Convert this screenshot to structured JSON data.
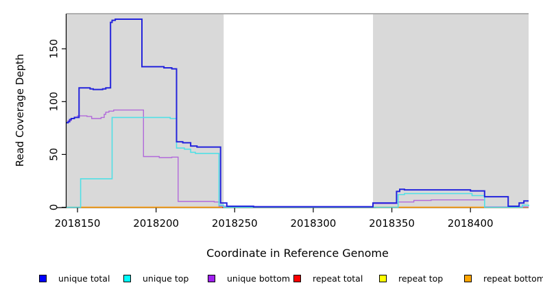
{
  "figure_type": "genome-coverage-step-plot",
  "chart_data": {
    "type": "line",
    "subtype": "step",
    "title": "",
    "xlabel": "Coordinate in Reference Genome",
    "ylabel": "Read Coverage Depth",
    "xlim": [
      2018143,
      2018437
    ],
    "ylim": [
      0,
      183
    ],
    "x_ticks": [
      2018150,
      2018200,
      2018250,
      2018300,
      2018350,
      2018400
    ],
    "y_ticks": [
      0,
      50,
      100,
      150
    ],
    "grid": "off",
    "legend_position": "bottom",
    "background": {
      "plot_fill": "#d9d9d9",
      "gap_fill": "#ffffff",
      "gap_x_range": [
        2018243,
        2018338
      ],
      "top_border_color": "#9a9a9a"
    },
    "series": [
      {
        "name": "repeat top",
        "color": "#f0f000",
        "line_width": 1.2,
        "segments": [
          [
            [
              2018143,
              0
            ],
            [
              2018437,
              0
            ]
          ]
        ]
      },
      {
        "name": "repeat total",
        "color": "#dd1c1c",
        "line_width": 1.2,
        "segments": [
          [
            [
              2018143,
              0
            ],
            [
              2018437,
              0
            ]
          ]
        ]
      },
      {
        "name": "repeat bottom",
        "color": "#ff9d00",
        "line_width": 1.6,
        "segments": [
          [
            [
              2018152,
              0
            ],
            [
              2018242,
              0
            ]
          ],
          [
            [
              2018340,
              0
            ],
            [
              2018437,
              0
            ]
          ]
        ]
      },
      {
        "name": "unique bottom",
        "color": "#b168da",
        "line_width": 1.4,
        "segments": [
          [
            [
              2018143,
              80
            ],
            [
              2018144,
              82
            ],
            [
              2018146,
              84
            ],
            [
              2018148,
              85
            ],
            [
              2018150,
              86.5
            ],
            [
              2018156,
              86
            ],
            [
              2018159,
              84
            ],
            [
              2018165,
              85
            ],
            [
              2018167,
              88
            ],
            [
              2018168,
              90
            ],
            [
              2018170,
              91
            ],
            [
              2018173,
              92
            ],
            [
              2018192,
              48
            ],
            [
              2018202,
              47
            ],
            [
              2018210,
              47.5
            ],
            [
              2018214,
              5.5
            ],
            [
              2018237,
              5
            ],
            [
              2018240,
              1
            ],
            [
              2018262,
              0.7
            ],
            [
              2018338,
              3.5
            ],
            [
              2018354,
              5
            ],
            [
              2018364,
              6.5
            ],
            [
              2018375,
              7
            ],
            [
              2018409,
              0.4
            ],
            [
              2018437,
              0.4
            ]
          ]
        ]
      },
      {
        "name": "unique top",
        "color": "#50e0e6",
        "line_width": 1.6,
        "segments": [
          [
            [
              2018143,
              0
            ],
            [
              2018152,
              27
            ],
            [
              2018172,
              85
            ],
            [
              2018209,
              84
            ],
            [
              2018213,
              56
            ],
            [
              2018218,
              55
            ],
            [
              2018222,
              52
            ],
            [
              2018225,
              51
            ],
            [
              2018240,
              2
            ],
            [
              2018243,
              0
            ],
            [
              2018354,
              12
            ],
            [
              2018358,
              13
            ],
            [
              2018401,
              11
            ],
            [
              2018409,
              0
            ],
            [
              2018433,
              2
            ],
            [
              2018437,
              1
            ]
          ]
        ]
      },
      {
        "name": "unique total",
        "color": "#2323dc",
        "line_width": 2,
        "segments": [
          [
            [
              2018143,
              80
            ],
            [
              2018144,
              81
            ],
            [
              2018145,
              83
            ],
            [
              2018146,
              84
            ],
            [
              2018148,
              85
            ],
            [
              2018151,
              113
            ],
            [
              2018158,
              112
            ],
            [
              2018160,
              111.5
            ],
            [
              2018166,
              112
            ],
            [
              2018168,
              113
            ],
            [
              2018171,
              175
            ],
            [
              2018172,
              177
            ],
            [
              2018174,
              178
            ],
            [
              2018191,
              133
            ],
            [
              2018205,
              132
            ],
            [
              2018210,
              131
            ],
            [
              2018213,
              62
            ],
            [
              2018217,
              61
            ],
            [
              2018222,
              58
            ],
            [
              2018226,
              57
            ],
            [
              2018241,
              4
            ],
            [
              2018245,
              1
            ],
            [
              2018262,
              0.5
            ],
            [
              2018338,
              4
            ],
            [
              2018353,
              15
            ],
            [
              2018355,
              17
            ],
            [
              2018358,
              16.5
            ],
            [
              2018400,
              15.5
            ],
            [
              2018409,
              10
            ],
            [
              2018424,
              1
            ],
            [
              2018431,
              4
            ],
            [
              2018434,
              6
            ],
            [
              2018437,
              6
            ]
          ]
        ]
      }
    ]
  },
  "legend": [
    {
      "label": "unique total",
      "fill": "#0000ff"
    },
    {
      "label": "unique top",
      "fill": "#00ffff"
    },
    {
      "label": "unique bottom",
      "fill": "#a020f0"
    },
    {
      "label": "repeat total",
      "fill": "#ff0000"
    },
    {
      "label": "repeat top",
      "fill": "#ffff00"
    },
    {
      "label": "repeat bottom",
      "fill": "#ffa500"
    }
  ]
}
